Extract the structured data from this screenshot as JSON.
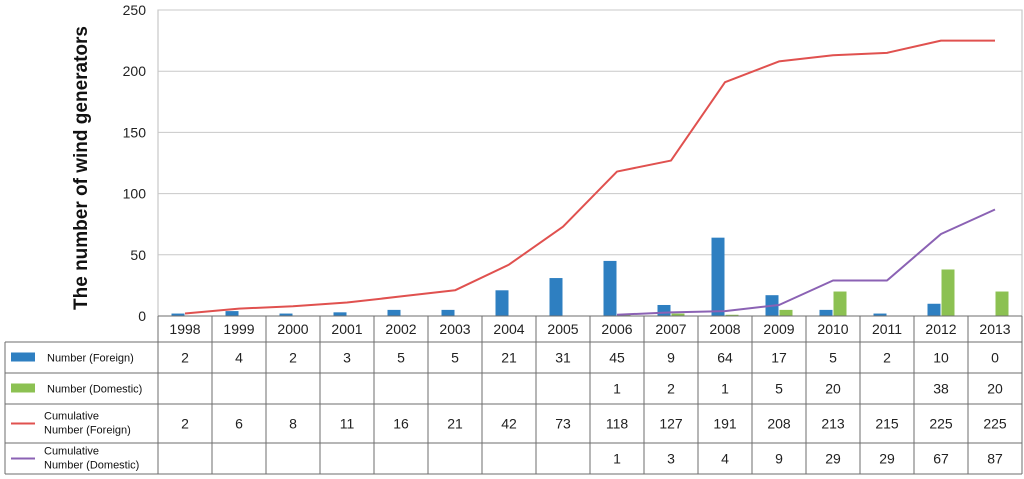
{
  "chart_data": {
    "type": "bar",
    "ylabel": "The number of wind generators",
    "ylim": [
      0,
      250
    ],
    "yticks": [
      0,
      50,
      100,
      150,
      200,
      250
    ],
    "grid": true,
    "legend": "data-table",
    "categories": [
      "1998",
      "1999",
      "2000",
      "2001",
      "2002",
      "2003",
      "2004",
      "2005",
      "2006",
      "2007",
      "2008",
      "2009",
      "2010",
      "2011",
      "2012",
      "2013"
    ],
    "series": [
      {
        "name": "Number (Foreign)",
        "kind": "bar",
        "color": "#2e7fc1",
        "values": [
          2,
          4,
          2,
          3,
          5,
          5,
          21,
          31,
          45,
          9,
          64,
          17,
          5,
          2,
          10,
          0
        ]
      },
      {
        "name": "Number (Domestic)",
        "kind": "bar",
        "color": "#8cc152",
        "values": [
          null,
          null,
          null,
          null,
          null,
          null,
          null,
          null,
          1,
          2,
          1,
          5,
          20,
          null,
          38,
          20
        ]
      },
      {
        "name": "Cumulative Number (Foreign)",
        "kind": "line",
        "color": "#e0514f",
        "values": [
          2,
          6,
          8,
          11,
          16,
          21,
          42,
          73,
          118,
          127,
          191,
          208,
          213,
          215,
          225,
          225
        ]
      },
      {
        "name": "Cumulative Number (Domestic)",
        "kind": "line",
        "color": "#8b62b4",
        "values": [
          null,
          null,
          null,
          null,
          null,
          null,
          null,
          null,
          1,
          3,
          4,
          9,
          29,
          29,
          67,
          87
        ]
      }
    ]
  }
}
